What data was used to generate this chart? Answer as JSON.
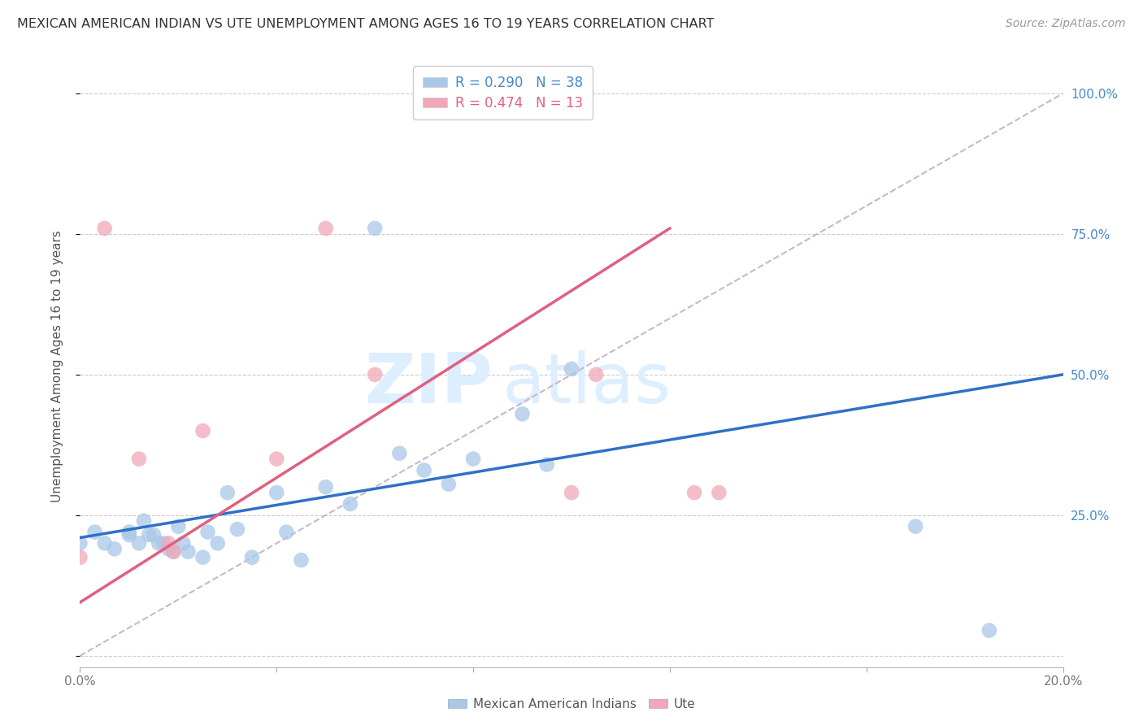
{
  "title": "MEXICAN AMERICAN INDIAN VS UTE UNEMPLOYMENT AMONG AGES 16 TO 19 YEARS CORRELATION CHART",
  "source": "Source: ZipAtlas.com",
  "ylabel": "Unemployment Among Ages 16 to 19 years",
  "xlim": [
    0.0,
    0.2
  ],
  "ylim": [
    -0.02,
    1.05
  ],
  "plot_ylim": [
    0.0,
    1.0
  ],
  "xticks": [
    0.0,
    0.04,
    0.08,
    0.12,
    0.16,
    0.2
  ],
  "yticks": [
    0.0,
    0.25,
    0.5,
    0.75,
    1.0
  ],
  "xtick_labels": [
    "0.0%",
    "",
    "",
    "",
    "",
    "20.0%"
  ],
  "ytick_labels": [
    "",
    "25.0%",
    "50.0%",
    "75.0%",
    "100.0%"
  ],
  "blue_scatter_x": [
    0.0,
    0.003,
    0.005,
    0.007,
    0.01,
    0.01,
    0.012,
    0.013,
    0.014,
    0.015,
    0.016,
    0.017,
    0.018,
    0.019,
    0.02,
    0.021,
    0.022,
    0.025,
    0.026,
    0.028,
    0.03,
    0.032,
    0.035,
    0.04,
    0.042,
    0.045,
    0.05,
    0.055,
    0.06,
    0.065,
    0.07,
    0.075,
    0.08,
    0.09,
    0.095,
    0.1,
    0.17,
    0.185
  ],
  "blue_scatter_y": [
    0.2,
    0.22,
    0.2,
    0.19,
    0.22,
    0.215,
    0.2,
    0.24,
    0.215,
    0.215,
    0.2,
    0.2,
    0.19,
    0.185,
    0.23,
    0.2,
    0.185,
    0.175,
    0.22,
    0.2,
    0.29,
    0.225,
    0.175,
    0.29,
    0.22,
    0.17,
    0.3,
    0.27,
    0.76,
    0.36,
    0.33,
    0.305,
    0.35,
    0.43,
    0.34,
    0.51,
    0.23,
    0.045
  ],
  "pink_scatter_x": [
    0.0,
    0.005,
    0.012,
    0.018,
    0.019,
    0.025,
    0.04,
    0.05,
    0.06,
    0.1,
    0.105,
    0.125,
    0.13
  ],
  "pink_scatter_y": [
    0.175,
    0.76,
    0.35,
    0.2,
    0.185,
    0.4,
    0.35,
    0.76,
    0.5,
    0.29,
    0.5,
    0.29,
    0.29
  ],
  "blue_line_x0": 0.0,
  "blue_line_y0": 0.21,
  "blue_line_x1": 0.2,
  "blue_line_y1": 0.5,
  "pink_line_x0": 0.0,
  "pink_line_y0": 0.095,
  "pink_line_x1": 0.12,
  "pink_line_y1": 0.76,
  "dash_line_x0": 0.0,
  "dash_line_y0": 0.0,
  "dash_line_x1": 0.2,
  "dash_line_y1": 1.0,
  "blue_line_color": "#3070c8",
  "pink_line_color": "#e06080",
  "dash_line_color": "#c8b8c8",
  "dot_color_blue": "#a8c8e8",
  "dot_color_pink": "#f0a8b8",
  "background_color": "#ffffff",
  "grid_color": "#cccccc",
  "title_color": "#333333",
  "axis_label_color": "#555555",
  "watermark_zip": "ZIP",
  "watermark_atlas": "atlas",
  "watermark_color": "#ddeeff",
  "right_axis_color": "#4488cc",
  "bottom_legend_blue": "Mexican American Indians",
  "bottom_legend_pink": "Ute"
}
